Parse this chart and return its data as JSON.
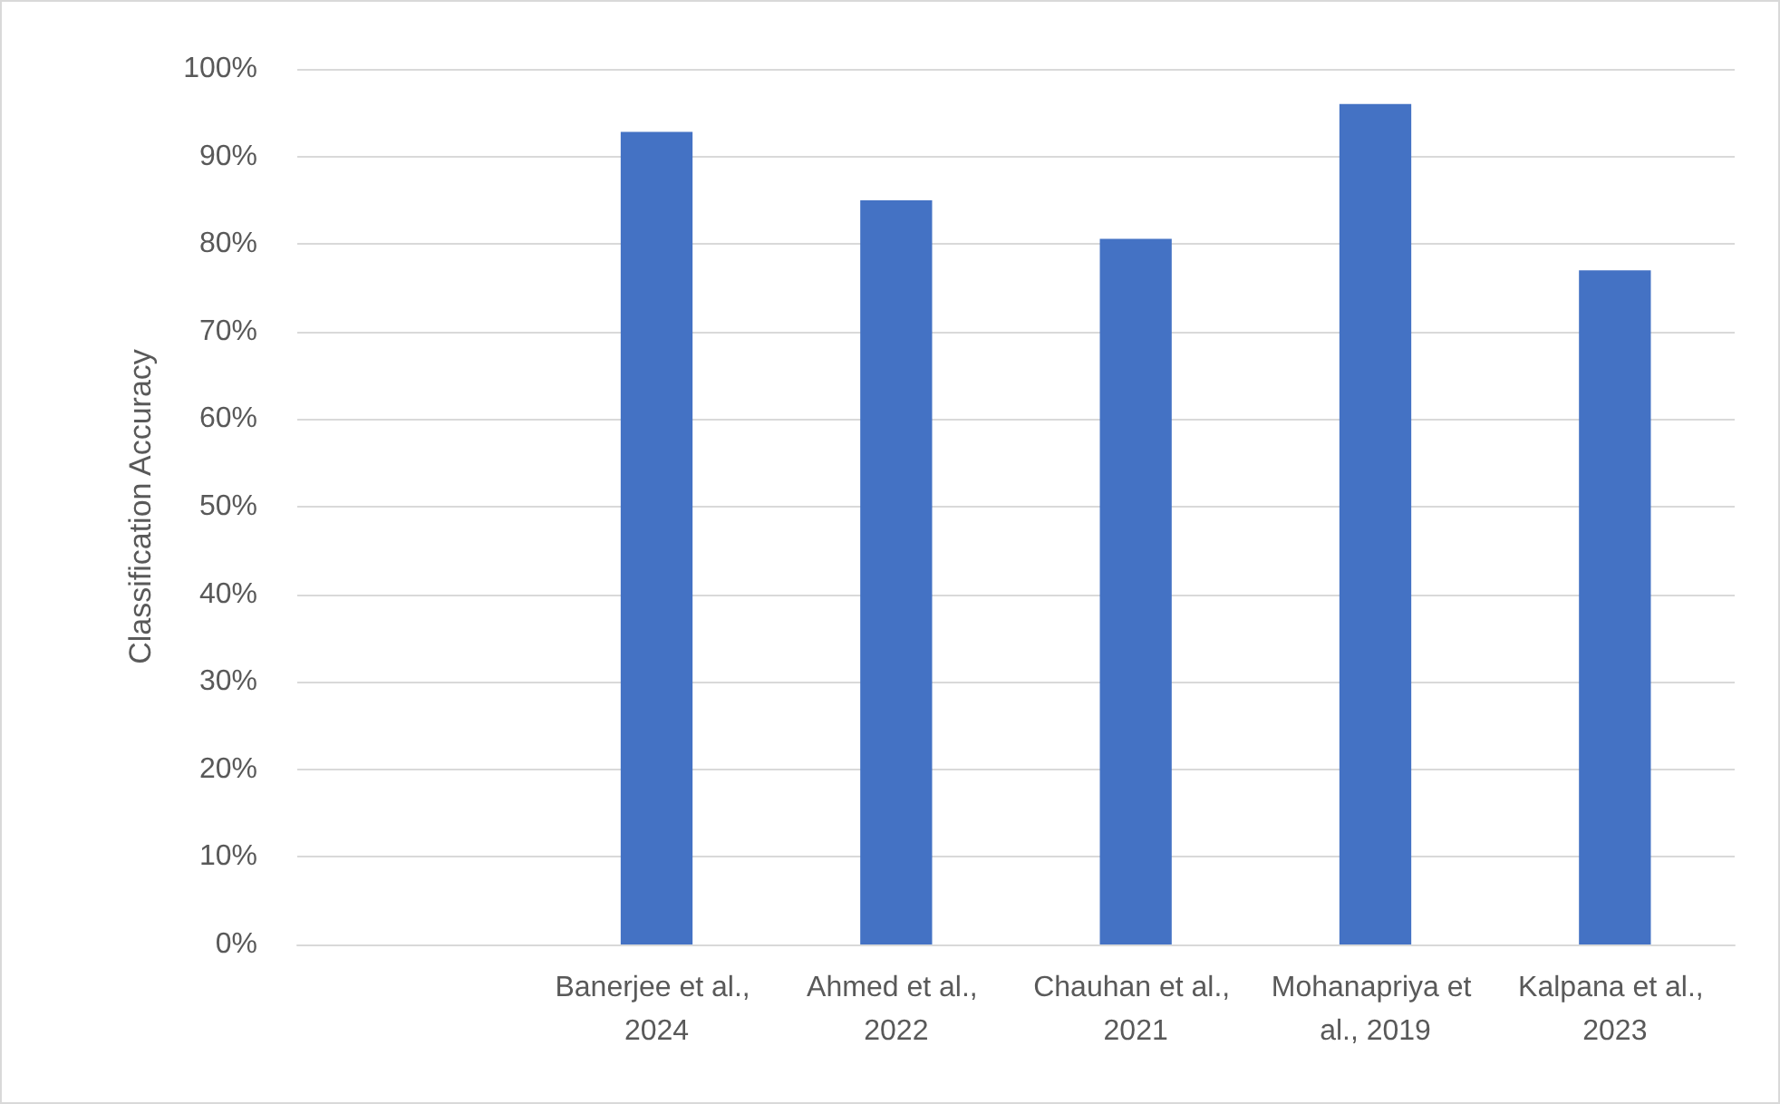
{
  "chart_data": {
    "type": "bar",
    "ylabel": "Classification Accuracy",
    "categories": [
      null,
      "Banerjee et al., 2024",
      "Ahmed et al., 2022",
      "Chauhan et al., 2021",
      "Mohanapriya et al., 2019",
      "Kalpana et al., 2023"
    ],
    "values": [
      null,
      92.8,
      85,
      80.6,
      96,
      77
    ],
    "color": "#4472c4",
    "ylim": [
      0,
      100
    ],
    "yticks": [
      {
        "value": 0,
        "label": "0%"
      },
      {
        "value": 10,
        "label": "10%"
      },
      {
        "value": 20,
        "label": "20%"
      },
      {
        "value": 30,
        "label": "30%"
      },
      {
        "value": 40,
        "label": "40%"
      },
      {
        "value": 50,
        "label": "50%"
      },
      {
        "value": 60,
        "label": "60%"
      },
      {
        "value": 70,
        "label": "70%"
      },
      {
        "value": 80,
        "label": "80%"
      },
      {
        "value": 90,
        "label": "90%"
      },
      {
        "value": 100,
        "label": "100%"
      }
    ],
    "grid": "y"
  }
}
